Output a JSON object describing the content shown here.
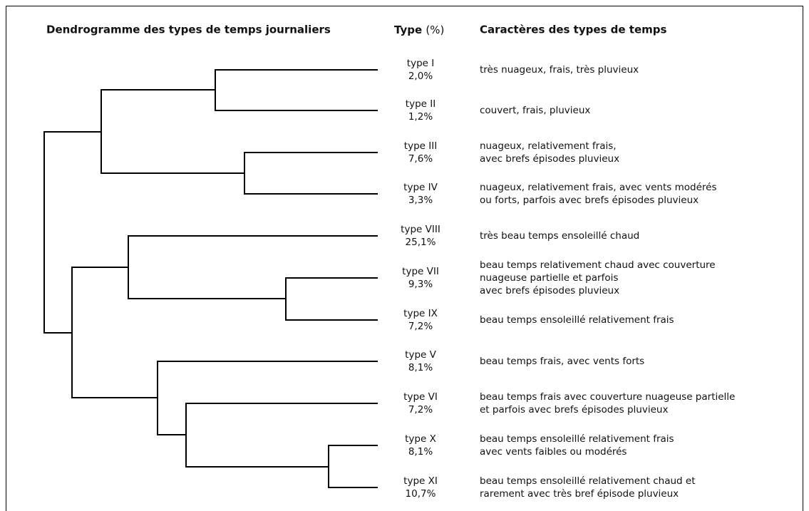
{
  "header": {
    "dendrogram": "Dendrogramme des types de temps journaliers",
    "type": "Type",
    "unit": "(%)",
    "characters": "Caractères des types de temps"
  },
  "rows": [
    {
      "type": "type I",
      "pct": "2,0%",
      "desc": [
        "très nuageux, frais, très pluvieux"
      ]
    },
    {
      "type": "type II",
      "pct": "1,2%",
      "desc": [
        "couvert, frais, pluvieux"
      ]
    },
    {
      "type": "type III",
      "pct": "7,6%",
      "desc": [
        "nuageux, relativement frais,",
        "avec brefs épisodes pluvieux"
      ]
    },
    {
      "type": "type IV",
      "pct": "3,3%",
      "desc": [
        "nuageux, relativement frais, avec vents modérés",
        "ou forts, parfois avec brefs épisodes pluvieux"
      ]
    },
    {
      "type": "type VIII",
      "pct": "25,1%",
      "desc": [
        "très beau temps ensoleillé chaud"
      ]
    },
    {
      "type": "type VII",
      "pct": "9,3%",
      "desc": [
        "beau temps relativement chaud avec couverture",
        "nuageuse partielle et parfois",
        "avec brefs épisodes pluvieux"
      ]
    },
    {
      "type": "type IX",
      "pct": "7,2%",
      "desc": [
        "beau temps ensoleillé relativement frais"
      ]
    },
    {
      "type": "type V",
      "pct": "8,1%",
      "desc": [
        "beau temps frais, avec vents forts"
      ]
    },
    {
      "type": "type VI",
      "pct": "7,2%",
      "desc": [
        "beau temps frais avec couverture nuageuse partielle",
        "et parfois avec brefs épisodes pluvieux"
      ]
    },
    {
      "type": "type X",
      "pct": "8,1%",
      "desc": [
        "beau temps ensoleillé relativement frais",
        "avec vents faibles ou modérés"
      ]
    },
    {
      "type": "type XI",
      "pct": "10,7%",
      "desc": [
        "beau temps ensoleillé relativement chaud et",
        "rarement avec très bref épisode pluvieux"
      ]
    }
  ]
}
